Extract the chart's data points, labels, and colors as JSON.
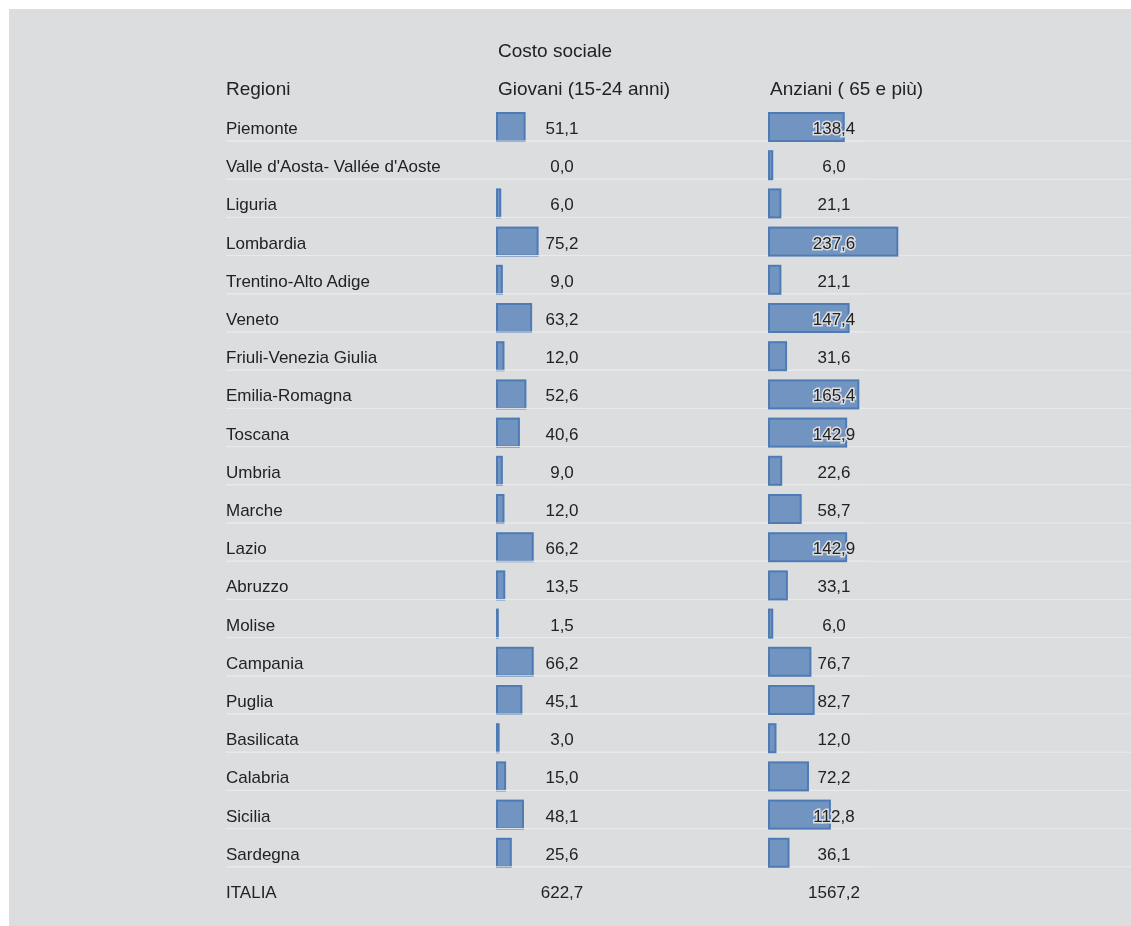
{
  "chart_data": [
    {
      "type": "bar",
      "orientation": "horizontal",
      "title": "Giovani (15-24 anni)",
      "ylabel": "Regioni",
      "color": "#4f7bb5",
      "categories": [
        "Piemonte",
        "Valle d'Aosta- Vallée d'Aoste",
        "Liguria",
        "Lombardia",
        "Trentino-Alto Adige",
        "Veneto",
        "Friuli-Venezia Giulia",
        "Emilia-Romagna",
        "Toscana",
        "Umbria",
        "Marche",
        "Lazio",
        "Abruzzo",
        "Molise",
        "Campania",
        "Puglia",
        "Basilicata",
        "Calabria",
        "Sicilia",
        "Sardegna"
      ],
      "values": [
        51.1,
        0.0,
        6.0,
        75.2,
        9.0,
        63.2,
        12.0,
        52.6,
        40.6,
        9.0,
        12.0,
        66.2,
        13.5,
        1.5,
        66.2,
        45.1,
        3.0,
        15.0,
        48.1,
        25.6
      ],
      "value_labels": [
        "51,1",
        "0,0",
        "6,0",
        "75,2",
        "9,0",
        "63,2",
        "12,0",
        "52,6",
        "40,6",
        "9,0",
        "12,0",
        "66,2",
        "13,5",
        "1,5",
        "66,2",
        "45,1",
        "3,0",
        "15,0",
        "48,1",
        "25,6"
      ],
      "annotations": [
        "Costo sociale",
        "ITALIA",
        "622,7"
      ]
    },
    {
      "type": "bar",
      "orientation": "horizontal",
      "title": "Anziani ( 65 e più)",
      "color": "#4f7bb5",
      "values": [
        138.4,
        6.0,
        21.1,
        237.6,
        21.1,
        147.4,
        31.6,
        165.4,
        142.9,
        22.6,
        58.7,
        142.9,
        33.1,
        6.0,
        76.7,
        82.7,
        12.0,
        72.2,
        112.8,
        36.1
      ],
      "value_labels": [
        "138,4",
        "6,0",
        "21,1",
        "237,6",
        "21,1",
        "147,4",
        "31,6",
        "165,4",
        "142,9",
        "22,6",
        "58,7",
        "142,9",
        "33,1",
        "6,0",
        "76,7",
        "82,7",
        "12,0",
        "72,2",
        "112,8",
        "36,1"
      ],
      "annotations": [
        "1567,2"
      ]
    }
  ]
}
